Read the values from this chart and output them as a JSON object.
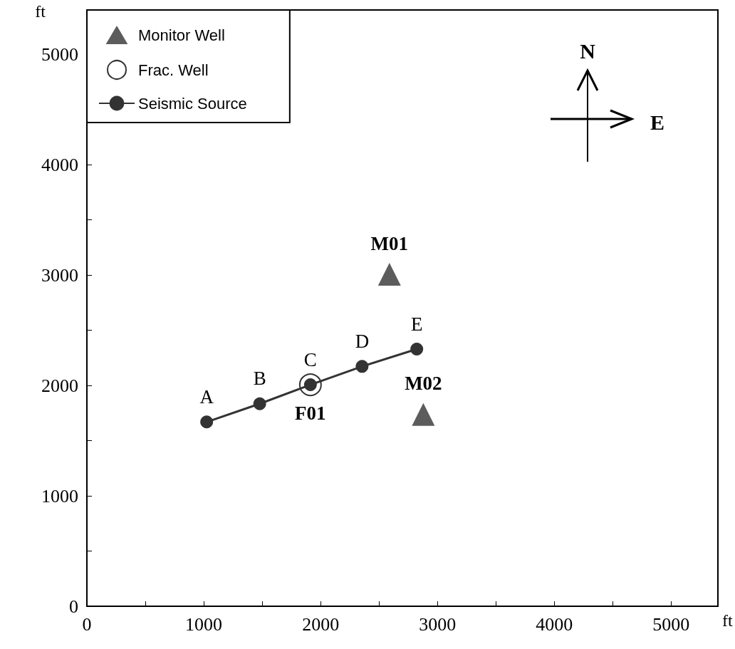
{
  "chart_data": {
    "type": "scatter",
    "xlabel": "ft",
    "ylabel": "ft",
    "xlim": [
      0,
      5400
    ],
    "ylim": [
      0,
      5400
    ],
    "xticks": [
      0,
      {
        "value": 500,
        "label": null
      },
      1000,
      {
        "value": 1500,
        "label": null
      },
      2000,
      {
        "value": 2500,
        "label": null
      },
      3000,
      {
        "value": 3500,
        "label": null
      },
      4000,
      {
        "value": 4500,
        "label": null
      },
      5000
    ],
    "yticks": [
      0,
      {
        "value": 500,
        "label": null
      },
      1000,
      {
        "value": 1500,
        "label": null
      },
      2000,
      {
        "value": 2500,
        "label": null
      },
      3000,
      {
        "value": 3500,
        "label": null
      },
      4000,
      {
        "value": 4500,
        "label": null
      },
      5000
    ],
    "grid": false,
    "legend": "top left",
    "series": [
      {
        "name": "Monitor Well",
        "marker": "triangle",
        "color": "#333333",
        "x": [
          2589,
          2879
        ],
        "values": [
          3006,
          1737
        ]
      },
      {
        "name": "Frac. Well",
        "marker": "circle",
        "color": "#000000",
        "x": [
          1913
        ],
        "values": [
          2006
        ]
      },
      {
        "name": "Seismic Source",
        "type": "line",
        "marker": "circle",
        "line_style": "solid",
        "color": "#333333",
        "x": [
          1025,
          1479,
          1913,
          2355,
          2823
        ],
        "values": [
          1669,
          1834,
          2006,
          2172,
          2329
        ]
      }
    ],
    "annotations": [
      {
        "text": "A",
        "x": 1025,
        "y": 1669
      },
      {
        "text": "B",
        "x": 1479,
        "y": 1834
      },
      {
        "text": "C",
        "x": 1913,
        "y": 2006
      },
      {
        "text": "D",
        "x": 2355,
        "y": 2172
      },
      {
        "text": "E",
        "x": 2823,
        "y": 2329
      },
      {
        "text": "M01",
        "x": 2589,
        "y": 3006
      },
      {
        "text": "M02",
        "x": 2879,
        "y": 1737
      },
      {
        "text": "F01",
        "x": 1913,
        "y": 2006
      },
      "N",
      "E"
    ]
  }
}
